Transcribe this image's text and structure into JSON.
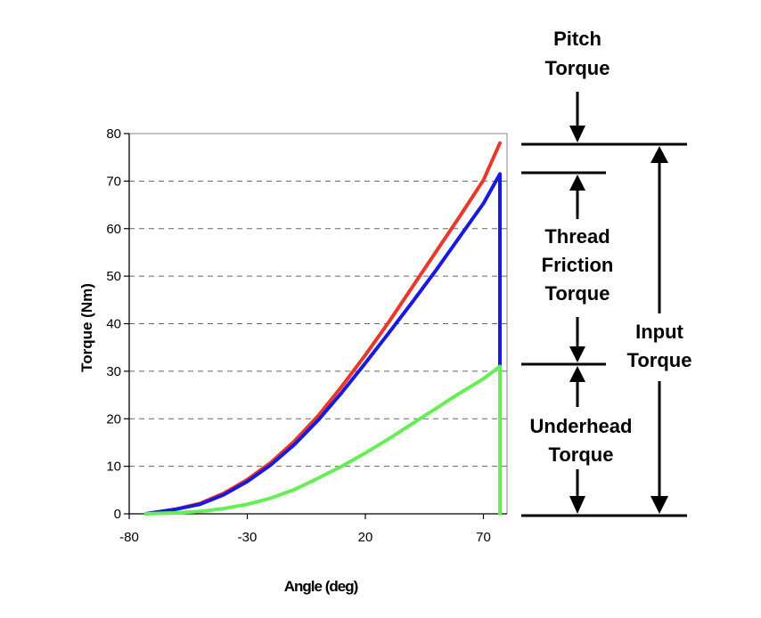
{
  "chart_data": {
    "type": "line",
    "title": "",
    "xlabel": "Angle (deg)",
    "ylabel": "Torque (Nm)",
    "xlim": [
      -80,
      80
    ],
    "ylim": [
      0,
      80
    ],
    "xticks": [
      -80,
      -30,
      20,
      70
    ],
    "yticks": [
      0,
      10,
      20,
      30,
      40,
      50,
      60,
      70,
      80
    ],
    "grid": "horizontal dashed",
    "series": [
      {
        "color": "#e8382a",
        "x": [
          -73,
          -60,
          -50,
          -40,
          -30,
          -20,
          -10,
          0,
          10,
          20,
          30,
          40,
          50,
          60,
          70,
          77
        ],
        "values": [
          0,
          1,
          2.2,
          4.3,
          7.2,
          10.8,
          15.3,
          20.6,
          26.8,
          33.4,
          40.4,
          47.8,
          55.2,
          62.6,
          70.2,
          78
        ]
      },
      {
        "color": "#1a1adf",
        "x": [
          -73,
          -60,
          -50,
          -40,
          -30,
          -20,
          -10,
          0,
          10,
          20,
          30,
          40,
          50,
          60,
          70,
          77,
          77
        ],
        "values": [
          0,
          1,
          2,
          4,
          6.8,
          10.3,
          14.6,
          19.7,
          25.5,
          31.7,
          38.1,
          44.6,
          51.3,
          58.3,
          65.3,
          71.5,
          30.5
        ]
      },
      {
        "color": "#66ee55",
        "x": [
          -73,
          -60,
          -50,
          -40,
          -30,
          -20,
          -10,
          0,
          10,
          20,
          30,
          40,
          50,
          60,
          70,
          77,
          77
        ],
        "values": [
          0,
          0.2,
          0.5,
          1.1,
          2,
          3.3,
          5.1,
          7.5,
          10,
          12.8,
          15.8,
          19,
          22.2,
          25.4,
          28.4,
          31,
          0
        ]
      }
    ],
    "annotations": {
      "pitch": [
        "Pitch",
        "Torque"
      ],
      "thread": [
        "Thread",
        "Friction",
        "Torque"
      ],
      "underhead": [
        "Underhead",
        "Torque"
      ],
      "input": [
        "Input",
        "Torque"
      ]
    }
  }
}
